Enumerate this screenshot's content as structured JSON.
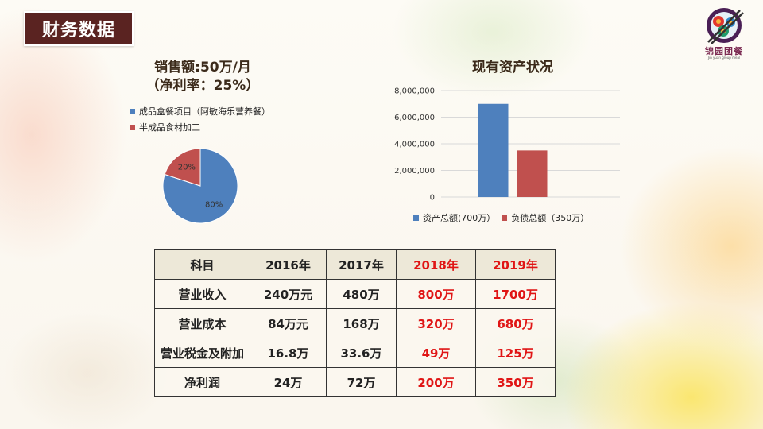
{
  "header": {
    "title": "财务数据"
  },
  "logo": {
    "name": "锦园团餐",
    "tagline": "Jin yuan group meal"
  },
  "pie_section": {
    "title_line1": "销售额:50万/月",
    "title_line2": "（净利率：25%）",
    "legend": [
      {
        "label": "成品盒餐项目（阿敏海乐营养餐）",
        "color": "#4e80bd"
      },
      {
        "label": "半成品食材加工",
        "color": "#c0504e"
      }
    ]
  },
  "bar_section": {
    "title": "现有资产状况",
    "legend": [
      {
        "label": "资产总额(700万）",
        "color": "#4e80bd"
      },
      {
        "label": "负债总额（350万）",
        "color": "#c0504e"
      }
    ]
  },
  "chart_data": [
    {
      "type": "pie",
      "categories": [
        "成品盒餐项目（阿敏海乐营养餐）",
        "半成品食材加工"
      ],
      "values": [
        80,
        20
      ],
      "labels": [
        "80%",
        "20%"
      ],
      "colors": [
        "#4e80bd",
        "#c0504e"
      ],
      "title": "销售额:50万/月（净利率：25%）",
      "legend_position": "top-left"
    },
    {
      "type": "bar",
      "categories": [
        ""
      ],
      "series": [
        {
          "name": "资产总额(700万）",
          "values": [
            7000000
          ],
          "color": "#4e80bd"
        },
        {
          "name": "负债总额（350万）",
          "values": [
            3500000
          ],
          "color": "#c0504e"
        }
      ],
      "title": "现有资产状况",
      "ylim": [
        0,
        8000000
      ],
      "yticks": [
        0,
        2000000,
        4000000,
        6000000,
        8000000
      ],
      "ytick_labels": [
        "0",
        "2,000,000",
        "4,000,000",
        "6,000,000",
        "8,000,000"
      ],
      "grid": true,
      "legend_position": "bottom"
    }
  ],
  "table": {
    "headers": [
      "科目",
      "2016年",
      "2017年",
      "2018年",
      "2019年"
    ],
    "rows": [
      [
        "营业收入",
        "240万元",
        "480万",
        "800万",
        "1700万"
      ],
      [
        "营业成本",
        "84万元",
        "168万",
        "320万",
        "680万"
      ],
      [
        "营业税金及附加",
        "16.8万",
        "33.6万",
        "49万",
        "125万"
      ],
      [
        "净利润",
        "24万",
        "72万",
        "200万",
        "350万"
      ]
    ],
    "highlight_color": "#e01515"
  }
}
